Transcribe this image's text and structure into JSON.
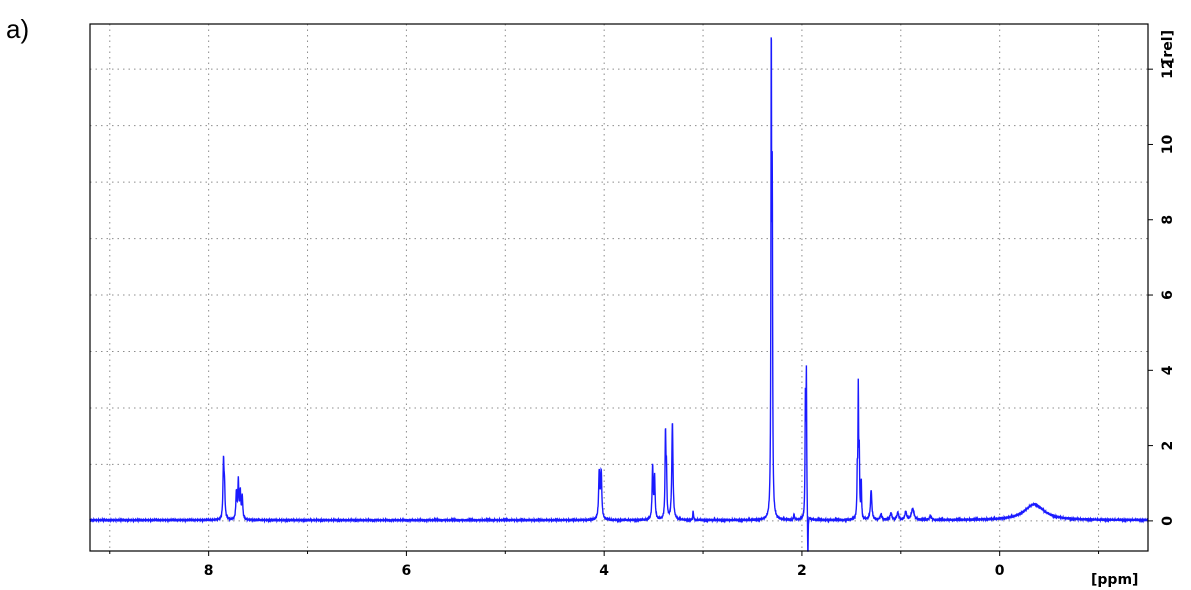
{
  "panel_label": "a)",
  "colors": {
    "spectrum": "#1a1aff",
    "axes": "#000000",
    "grid": "#8c8c8c",
    "background": "#ffffff"
  },
  "chart_data": {
    "type": "line",
    "title": "",
    "xlabel": "[ppm]",
    "ylabel": "[rel]",
    "x_reversed": true,
    "xlim": [
      9.2,
      -1.5
    ],
    "ylim": [
      -0.8,
      13.2
    ],
    "x_ticks": [
      8,
      6,
      4,
      2,
      0
    ],
    "y_ticks": [
      0,
      2,
      4,
      6,
      8,
      10,
      12
    ],
    "x_grid": [
      9,
      8,
      7,
      6,
      5,
      4,
      3,
      2,
      1,
      0,
      -1
    ],
    "y_grid": [
      0,
      1.5,
      3,
      4.5,
      6,
      7.5,
      9,
      10.5,
      12
    ],
    "grid": true,
    "baseline": 0.02,
    "series": [
      {
        "peaks": [
          {
            "ppm": 7.85,
            "height": 1.5,
            "width": 0.006
          },
          {
            "ppm": 7.84,
            "height": 0.8,
            "width": 0.006
          },
          {
            "ppm": 7.72,
            "height": 0.7,
            "width": 0.006
          },
          {
            "ppm": 7.7,
            "height": 1.0,
            "width": 0.006
          },
          {
            "ppm": 7.68,
            "height": 0.7,
            "width": 0.006
          },
          {
            "ppm": 7.66,
            "height": 0.6,
            "width": 0.006
          },
          {
            "ppm": 4.05,
            "height": 1.25,
            "width": 0.007
          },
          {
            "ppm": 4.03,
            "height": 1.25,
            "width": 0.007
          },
          {
            "ppm": 3.51,
            "height": 1.4,
            "width": 0.006
          },
          {
            "ppm": 3.49,
            "height": 1.1,
            "width": 0.006
          },
          {
            "ppm": 3.38,
            "height": 2.25,
            "width": 0.005
          },
          {
            "ppm": 3.37,
            "height": 1.2,
            "width": 0.005
          },
          {
            "ppm": 3.31,
            "height": 2.6,
            "width": 0.007
          },
          {
            "ppm": 3.1,
            "height": 0.25,
            "width": 0.004
          },
          {
            "ppm": 2.31,
            "height": 12.4,
            "width": 0.004
          },
          {
            "ppm": 2.3,
            "height": 8.1,
            "width": 0.004
          },
          {
            "ppm": 2.08,
            "height": 0.15,
            "width": 0.005
          },
          {
            "ppm": 1.965,
            "height": 3.0,
            "width": 0.004
          },
          {
            "ppm": 1.955,
            "height": 3.75,
            "width": 0.004
          },
          {
            "ppm": 1.94,
            "height": -1.5,
            "width": 0.003
          },
          {
            "ppm": 1.44,
            "height": 1.1,
            "width": 0.004
          },
          {
            "ppm": 1.43,
            "height": 3.35,
            "width": 0.004
          },
          {
            "ppm": 1.42,
            "height": 1.6,
            "width": 0.004
          },
          {
            "ppm": 1.4,
            "height": 1.0,
            "width": 0.004
          },
          {
            "ppm": 1.3,
            "height": 0.8,
            "width": 0.008
          },
          {
            "ppm": 1.2,
            "height": 0.15,
            "width": 0.01
          },
          {
            "ppm": 1.1,
            "height": 0.18,
            "width": 0.01
          },
          {
            "ppm": 1.03,
            "height": 0.2,
            "width": 0.01
          },
          {
            "ppm": 0.95,
            "height": 0.22,
            "width": 0.01
          },
          {
            "ppm": 0.88,
            "height": 0.3,
            "width": 0.015
          },
          {
            "ppm": 0.7,
            "height": 0.12,
            "width": 0.01
          },
          {
            "ppm": -0.35,
            "height": 0.42,
            "width": 0.12
          }
        ]
      }
    ]
  }
}
